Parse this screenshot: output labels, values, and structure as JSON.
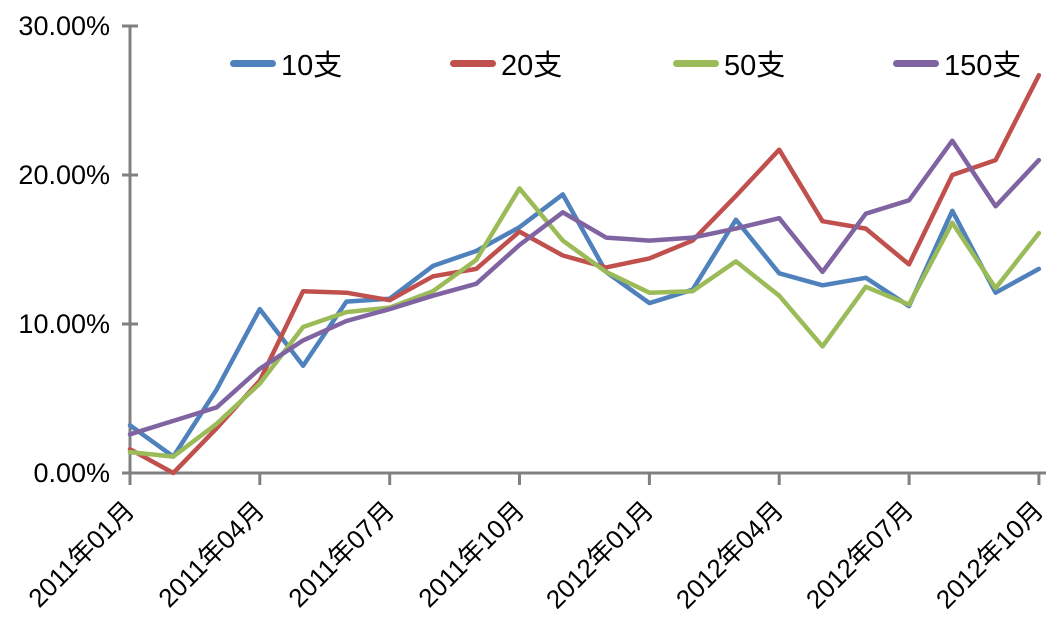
{
  "chart_data": {
    "type": "line",
    "title": "",
    "grid": false,
    "plot_background": "#ffffff",
    "axis_color": "#808080",
    "legend": {
      "position": "top"
    },
    "y_axis": {
      "min": 0,
      "max": 30,
      "unit": "%",
      "tick_labels": [
        "0.00%",
        "10.00%",
        "20.00%",
        "30.00%"
      ]
    },
    "x_axis": {
      "label_rotation_deg": -45,
      "tick_positions": [
        0,
        3,
        6,
        9,
        12,
        15,
        18,
        21
      ],
      "tick_labels": [
        "2011年01月",
        "2011年04月",
        "2011年07月",
        "2011年10月",
        "2012年01月",
        "2012年04月",
        "2012年07月",
        "2012年10月"
      ]
    },
    "categories": [
      "2011年01月",
      "2011年02月",
      "2011年03月",
      "2011年04月",
      "2011年05月",
      "2011年06月",
      "2011年07月",
      "2011年08月",
      "2011年09月",
      "2011年10月",
      "2011年11月",
      "2011年12月",
      "2012年01月",
      "2012年02月",
      "2012年03月",
      "2012年04月",
      "2012年05月",
      "2012年06月",
      "2012年07月",
      "2012年08月",
      "2012年09月",
      "2012年10月"
    ],
    "series": [
      {
        "name": "10支",
        "color": "#4F81BD",
        "values": [
          3.2,
          1.1,
          5.6,
          11.0,
          7.2,
          11.5,
          11.7,
          13.9,
          14.9,
          16.5,
          18.7,
          13.5,
          11.4,
          12.3,
          17.0,
          13.4,
          12.6,
          13.1,
          11.2,
          17.6,
          12.1,
          13.7
        ]
      },
      {
        "name": "20支",
        "color": "#C0504D",
        "values": [
          1.6,
          0.0,
          3.0,
          6.2,
          12.2,
          12.1,
          11.6,
          13.2,
          13.7,
          16.2,
          14.6,
          13.8,
          14.4,
          15.6,
          18.6,
          21.7,
          16.9,
          16.4,
          14.0,
          20.0,
          21.0,
          26.7
        ]
      },
      {
        "name": "50支",
        "color": "#9BBB59",
        "values": [
          1.4,
          1.1,
          3.3,
          6.0,
          9.8,
          10.8,
          11.1,
          12.2,
          14.3,
          19.1,
          15.6,
          13.5,
          12.1,
          12.2,
          14.2,
          11.9,
          8.5,
          12.5,
          11.3,
          16.8,
          12.4,
          16.1
        ]
      },
      {
        "name": "150支",
        "color": "#8064A2",
        "values": [
          2.6,
          3.5,
          4.4,
          7.0,
          8.9,
          10.2,
          11.0,
          11.9,
          12.7,
          15.3,
          17.5,
          15.8,
          15.6,
          15.8,
          16.4,
          17.1,
          13.5,
          17.4,
          18.3,
          22.3,
          17.9,
          21.0
        ]
      }
    ]
  }
}
